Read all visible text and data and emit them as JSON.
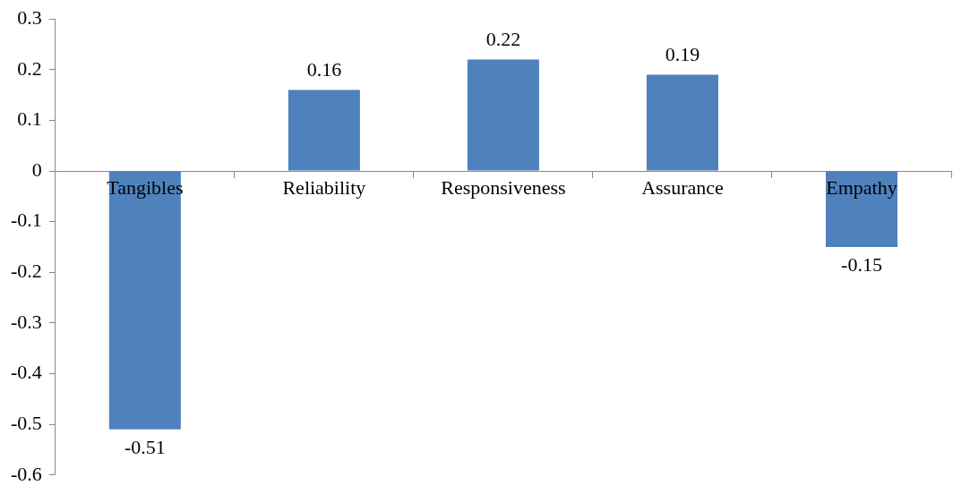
{
  "chart_data": {
    "type": "bar",
    "categories": [
      "Tangibles",
      "Reliability",
      "Responsiveness",
      "Assurance",
      "Empathy"
    ],
    "values": [
      -0.51,
      0.16,
      0.22,
      0.19,
      -0.15
    ],
    "color": "#4f81bd",
    "ylim": [
      -0.6,
      0.3
    ],
    "yticks": [
      -0.6,
      -0.5,
      -0.4,
      -0.3,
      -0.2,
      -0.1,
      0,
      0.1,
      0.2,
      0.3
    ],
    "data_labels": true
  }
}
